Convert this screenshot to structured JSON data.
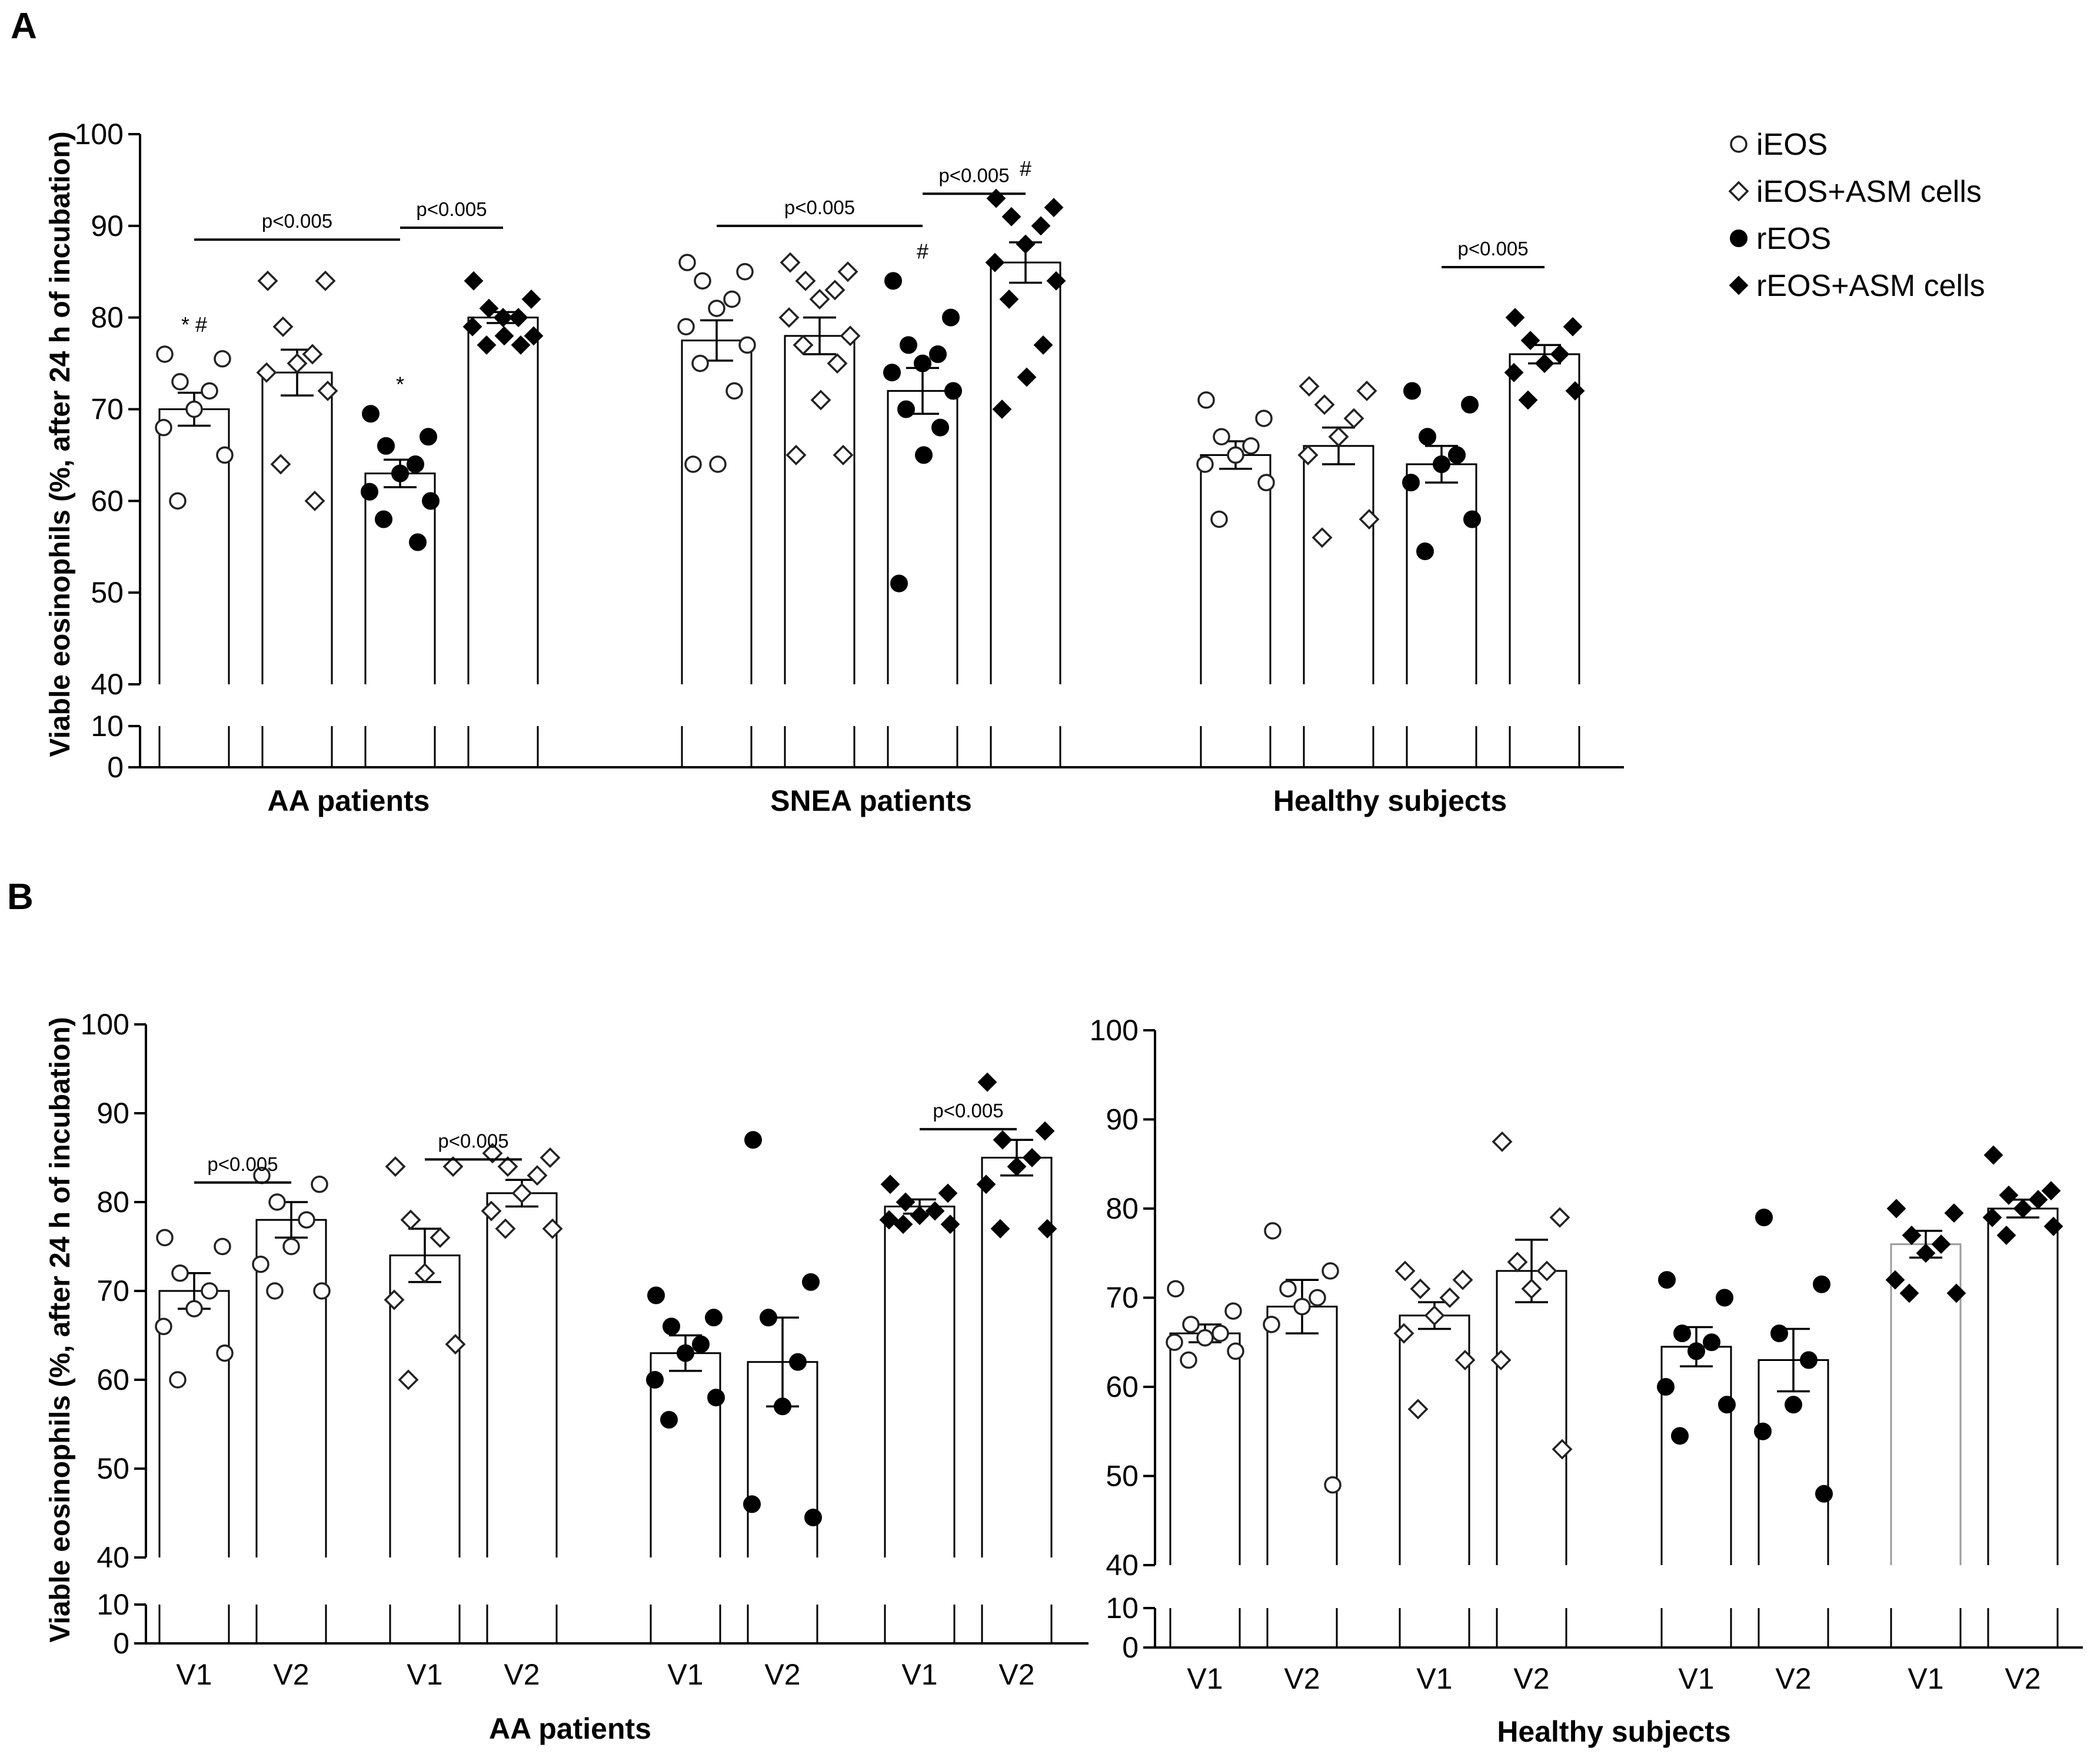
{
  "panels": {
    "A": {
      "letter": "A"
    },
    "B": {
      "letter": "B"
    }
  },
  "ylabel": "Viable eosinophils (%, after 24 h of incubation)",
  "legend": [
    {
      "label": "iEOS",
      "marker": "circle-open-icon"
    },
    {
      "label": "iEOS+ASM cells",
      "marker": "diamond-open-icon"
    },
    {
      "label": "rEOS",
      "marker": "circle-filled-icon"
    },
    {
      "label": "rEOS+ASM cells",
      "marker": "diamond-filled-icon"
    }
  ],
  "chart_data": [
    {
      "type": "bar",
      "panel": "A",
      "ylabel": "Viable eosinophils (%, after 24 h of incubation)",
      "ylim": [
        40,
        100
      ],
      "yticks": [
        "100",
        "90",
        "80",
        "70",
        "60",
        "50",
        "40"
      ],
      "broken_axis_ticks": [
        "10",
        "0"
      ],
      "groups": [
        "AA patients",
        "SNEA patients",
        "Healthy subjects"
      ],
      "series_names": [
        "iEOS",
        "iEOS+ASM cells",
        "rEOS",
        "rEOS+ASM cells"
      ],
      "bars": [
        {
          "group": "AA patients",
          "series": "iEOS",
          "mean": 70,
          "sem": 1.8,
          "points": [
            76,
            75.5,
            73,
            72,
            70,
            68,
            65,
            60
          ],
          "annotation": "* #"
        },
        {
          "group": "AA patients",
          "series": "iEOS+ASM cells",
          "mean": 74,
          "sem": 2.5,
          "points": [
            84,
            84,
            79,
            76,
            75,
            74,
            72,
            64,
            60
          ],
          "annotation": ""
        },
        {
          "group": "AA patients",
          "series": "rEOS",
          "mean": 63,
          "sem": 1.5,
          "points": [
            69.5,
            67,
            66,
            64,
            63,
            61,
            60,
            58,
            55.5
          ],
          "annotation": "*"
        },
        {
          "group": "AA patients",
          "series": "rEOS+ASM cells",
          "mean": 80,
          "sem": 0.6,
          "points": [
            84,
            82,
            81,
            80,
            80,
            79,
            78,
            77,
            77,
            78
          ],
          "annotation": ""
        },
        {
          "group": "SNEA patients",
          "series": "iEOS",
          "mean": 77.5,
          "sem": 2.2,
          "points": [
            86,
            85,
            84,
            82,
            81,
            79,
            77,
            75,
            72,
            64,
            64
          ],
          "annotation": ""
        },
        {
          "group": "SNEA patients",
          "series": "iEOS+ASM cells",
          "mean": 78,
          "sem": 2,
          "points": [
            86,
            85,
            84,
            83,
            82,
            80,
            78,
            77,
            75,
            71,
            65,
            65
          ],
          "annotation": ""
        },
        {
          "group": "SNEA patients",
          "series": "rEOS",
          "mean": 72,
          "sem": 2.5,
          "points": [
            84,
            80,
            77,
            76,
            75,
            74,
            72,
            70,
            68,
            65,
            51
          ],
          "annotation": "#"
        },
        {
          "group": "SNEA patients",
          "series": "rEOS+ASM cells",
          "mean": 86,
          "sem": 2.2,
          "points": [
            93,
            92,
            91,
            90,
            88,
            86,
            84,
            82,
            77,
            73.5,
            70
          ],
          "annotation": "#"
        },
        {
          "group": "Healthy subjects",
          "series": "iEOS",
          "mean": 65,
          "sem": 1.5,
          "points": [
            71,
            69,
            67,
            66,
            65,
            64,
            62,
            58
          ],
          "annotation": ""
        },
        {
          "group": "Healthy subjects",
          "series": "iEOS+ASM cells",
          "mean": 66,
          "sem": 2,
          "points": [
            72.5,
            72,
            70.5,
            69,
            67,
            65,
            58,
            56
          ],
          "annotation": ""
        },
        {
          "group": "Healthy subjects",
          "series": "rEOS",
          "mean": 64,
          "sem": 2,
          "points": [
            72,
            70.5,
            67,
            65,
            64,
            62,
            58,
            54.5
          ],
          "annotation": ""
        },
        {
          "group": "Healthy subjects",
          "series": "rEOS+ASM cells",
          "mean": 76,
          "sem": 1,
          "points": [
            80,
            79,
            77.5,
            76,
            75,
            74,
            72,
            71
          ],
          "annotation": ""
        }
      ],
      "comparisons": [
        {
          "label": "p<0.005",
          "from": "AA patients / iEOS",
          "to": "AA patients / rEOS"
        },
        {
          "label": "p<0.005",
          "from": "AA patients / rEOS",
          "to": "AA patients / rEOS+ASM cells"
        },
        {
          "label": "p<0.005",
          "from": "SNEA patients / iEOS",
          "to": "SNEA patients / rEOS"
        },
        {
          "label": "p<0.005",
          "from": "SNEA patients / rEOS",
          "to": "SNEA patients / rEOS+ASM cells"
        },
        {
          "label": "p<0.005",
          "from": "Healthy subjects / rEOS",
          "to": "Healthy subjects / rEOS+ASM cells"
        }
      ]
    },
    {
      "type": "bar",
      "panel": "B-left",
      "ylabel": "Viable eosinophils (%, after 24 h of incubation)",
      "ylim": [
        40,
        100
      ],
      "yticks": [
        "100",
        "90",
        "80",
        "70",
        "60",
        "50",
        "40"
      ],
      "broken_axis_ticks": [
        "10",
        "0"
      ],
      "group_label": "AA patients",
      "bars": [
        {
          "visit": "V1",
          "series": "iEOS",
          "mean": 70,
          "sem": 2,
          "points": [
            76,
            75,
            72,
            70,
            68,
            66,
            63,
            60
          ]
        },
        {
          "visit": "V2",
          "series": "iEOS",
          "mean": 78,
          "sem": 2,
          "points": [
            83,
            82,
            80,
            78,
            75,
            73,
            70,
            70
          ]
        },
        {
          "visit": "V1",
          "series": "iEOS+ASM cells",
          "mean": 74,
          "sem": 3,
          "points": [
            84,
            84,
            78,
            76,
            72,
            69,
            64,
            60
          ]
        },
        {
          "visit": "V2",
          "series": "iEOS+ASM cells",
          "mean": 81,
          "sem": 1.5,
          "points": [
            85.5,
            85,
            84,
            83,
            81,
            79,
            77,
            77
          ]
        },
        {
          "visit": "V1",
          "series": "rEOS",
          "mean": 63,
          "sem": 2,
          "points": [
            69.5,
            67,
            66,
            64,
            63,
            60,
            58,
            55.5
          ]
        },
        {
          "visit": "V2",
          "series": "rEOS",
          "mean": 62,
          "sem": 5,
          "points": [
            87,
            71,
            67,
            62,
            57,
            46,
            44.5
          ]
        },
        {
          "visit": "V1",
          "series": "rEOS+ASM cells",
          "mean": 79.5,
          "sem": 0.8,
          "points": [
            82,
            81,
            80,
            79,
            78.5,
            78,
            77.5,
            77.5
          ]
        },
        {
          "visit": "V2",
          "series": "rEOS+ASM cells",
          "mean": 85,
          "sem": 2,
          "points": [
            93.5,
            88,
            87,
            85,
            84,
            82,
            77,
            77
          ]
        }
      ],
      "comparisons": [
        {
          "label": "p<0.005",
          "from": "iEOS V1",
          "to": "iEOS V2"
        },
        {
          "label": "p<0.005",
          "from": "iEOS+ASM cells V1",
          "to": "iEOS+ASM cells V2"
        },
        {
          "label": "p<0.005",
          "from": "rEOS+ASM cells V1",
          "to": "rEOS+ASM cells V2"
        }
      ]
    },
    {
      "type": "bar",
      "panel": "B-right",
      "ylim": [
        40,
        100
      ],
      "yticks": [
        "100",
        "90",
        "80",
        "70",
        "60",
        "50",
        "40"
      ],
      "broken_axis_ticks": [
        "10",
        "0"
      ],
      "group_label": "Healthy subjects",
      "bars": [
        {
          "visit": "V1",
          "series": "iEOS",
          "mean": 66,
          "sem": 1,
          "points": [
            71,
            68.5,
            67,
            66,
            65.5,
            65,
            64,
            63
          ]
        },
        {
          "visit": "V2",
          "series": "iEOS",
          "mean": 69,
          "sem": 3,
          "points": [
            77.5,
            73,
            71,
            70,
            69,
            67,
            49
          ]
        },
        {
          "visit": "V1",
          "series": "iEOS+ASM cells",
          "mean": 68,
          "sem": 1.5,
          "points": [
            73,
            72,
            71,
            70,
            68,
            66,
            63,
            57.5
          ]
        },
        {
          "visit": "V2",
          "series": "iEOS+ASM cells",
          "mean": 73,
          "sem": 3.5,
          "points": [
            87.5,
            79,
            74,
            73,
            71,
            63,
            53
          ]
        },
        {
          "visit": "V1",
          "series": "rEOS",
          "mean": 64.5,
          "sem": 2.2,
          "points": [
            72,
            70,
            66,
            65,
            64,
            60,
            58,
            54.5
          ]
        },
        {
          "visit": "V2",
          "series": "rEOS",
          "mean": 63,
          "sem": 3.5,
          "points": [
            79,
            71.5,
            66,
            63,
            58,
            55,
            48
          ]
        },
        {
          "visit": "V1",
          "series": "rEOS+ASM cells",
          "mean": 76,
          "sem": 1.5,
          "points": [
            80,
            79.5,
            77,
            76,
            75,
            72,
            70.5,
            70.5
          ]
        },
        {
          "visit": "V2",
          "series": "rEOS+ASM cells",
          "mean": 80,
          "sem": 1,
          "points": [
            86,
            82,
            81.5,
            81,
            80,
            79,
            78,
            77
          ]
        }
      ]
    }
  ]
}
